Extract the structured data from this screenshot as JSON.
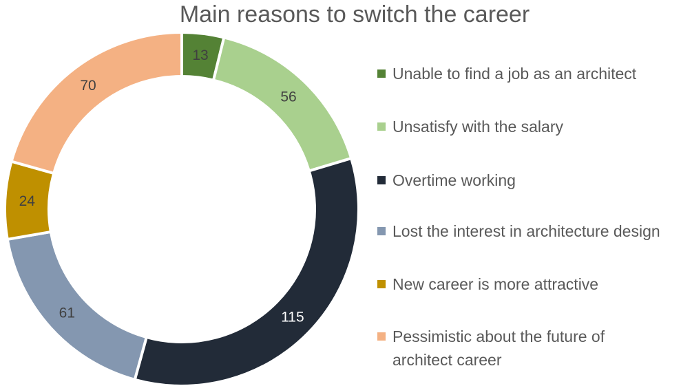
{
  "chart_data": {
    "type": "pie",
    "title": "Main reasons to switch the career",
    "categories": [
      "Unable to find a job as an architect",
      "Unsatisfy with the salary",
      "Overtime working",
      "Lost the interest in architecture design",
      "New career is more attractive",
      "Pessimistic about the future of architect career"
    ],
    "values": [
      13,
      56,
      115,
      61,
      24,
      70
    ],
    "value_labels": [
      "13",
      "56",
      "115",
      "61",
      "24",
      "70"
    ],
    "colors": [
      "#548235",
      "#a9d08e",
      "#222b38",
      "#8497b0",
      "#bf9000",
      "#f4b183"
    ],
    "label_colors": [
      "#404040",
      "#404040",
      "#ffffff",
      "#404040",
      "#404040",
      "#404040"
    ],
    "donut": true,
    "legend_position": "right"
  }
}
